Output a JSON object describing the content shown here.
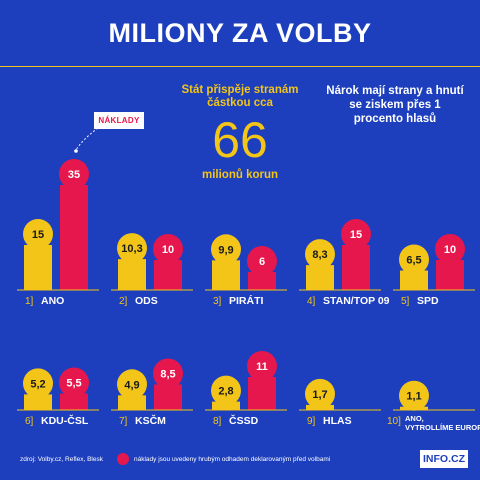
{
  "header": {
    "title": "MILIONY ZA VOLBY"
  },
  "info": {
    "left_text": "Stát přispěje stranám částkou cca",
    "big_number": "66",
    "big_unit": "milionů korun",
    "right_text": "Nárok mají strany a hnutí se ziskem přes 1 procento hlasů",
    "callout": "NÁKLADY"
  },
  "footer": {
    "source": "zdroj: Volby.cz, Reflex, Blesk",
    "legend": "náklady jsou uvedeny hrubým odhadem deklarovaným před volbami",
    "brand": "INFO.CZ"
  },
  "colors": {
    "background": "#1d3fbd",
    "yellow": "#f2c518",
    "red": "#e5174c",
    "text": "#ffffff"
  },
  "chart_data": {
    "type": "bar",
    "title": "MILIONY ZA VOLBY",
    "unit": "milionů korun",
    "series": [
      {
        "name": "",
        "color": "#f2c518"
      },
      {
        "name": "náklady",
        "color": "#e5174c"
      }
    ],
    "parties": [
      {
        "rank": "1",
        "name": "ANO",
        "yellow": 15,
        "yellow_label": "15",
        "red": 35,
        "red_label": "35"
      },
      {
        "rank": "2",
        "name": "ODS",
        "yellow": 10.3,
        "yellow_label": "10,3",
        "red": 10,
        "red_label": "10"
      },
      {
        "rank": "3",
        "name": "PIRÁTI",
        "yellow": 9.9,
        "yellow_label": "9,9",
        "red": 6,
        "red_label": "6"
      },
      {
        "rank": "4",
        "name": "STAN/TOP 09",
        "yellow": 8.3,
        "yellow_label": "8,3",
        "red": 15,
        "red_label": "15"
      },
      {
        "rank": "5",
        "name": "SPD",
        "yellow": 6.5,
        "yellow_label": "6,5",
        "red": 10,
        "red_label": "10"
      },
      {
        "rank": "6",
        "name": "KDU-ČSL",
        "yellow": 5.2,
        "yellow_label": "5,2",
        "red": 5.5,
        "red_label": "5,5"
      },
      {
        "rank": "7",
        "name": "KSČM",
        "yellow": 4.9,
        "yellow_label": "4,9",
        "red": 8.5,
        "red_label": "8,5"
      },
      {
        "rank": "8",
        "name": "ČSSD",
        "yellow": 2.8,
        "yellow_label": "2,8",
        "red": 11,
        "red_label": "11"
      },
      {
        "rank": "9",
        "name": "HLAS",
        "yellow": 1.7,
        "yellow_label": "1,7",
        "red": null,
        "red_label": ""
      },
      {
        "rank": "10",
        "name": "ANO, VYTROLLÍME EUROPARLAMENT",
        "yellow": 1.1,
        "yellow_label": "1,1",
        "red": null,
        "red_label": ""
      }
    ]
  }
}
